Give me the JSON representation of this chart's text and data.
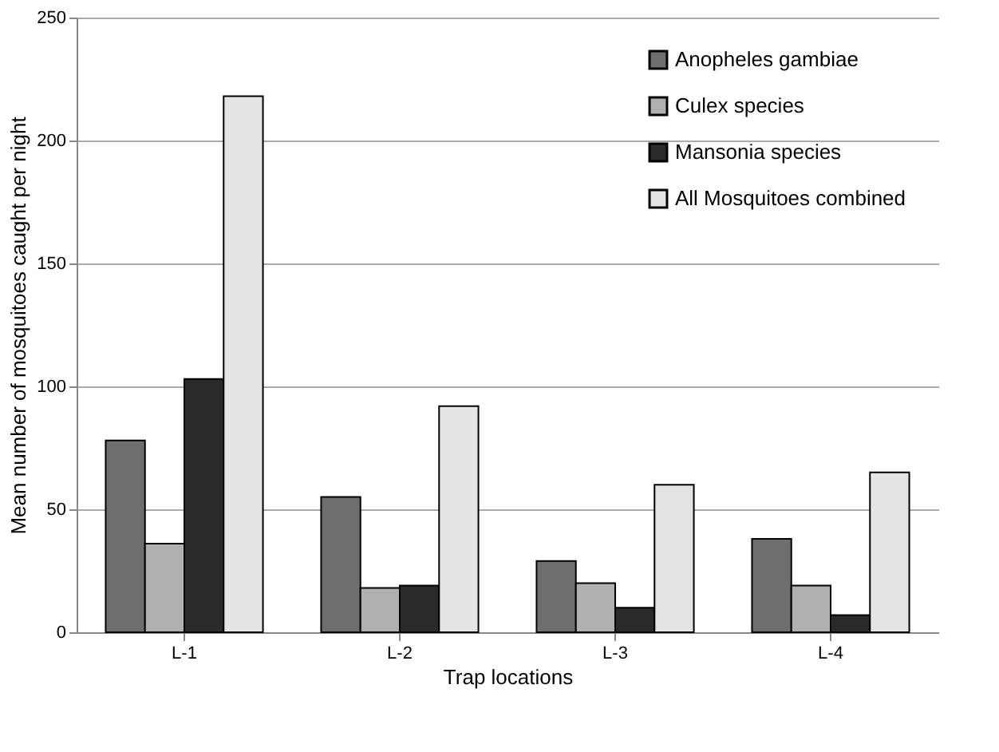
{
  "chart_data": {
    "type": "bar",
    "xlabel": "Trap locations",
    "ylabel": "Mean number of mosquitoes caught per night",
    "categories": [
      "L-1",
      "L-2",
      "L-3",
      "L-4"
    ],
    "series": [
      {
        "name": "Anopheles gambiae",
        "color": "#6e6e6e",
        "values": [
          78,
          55,
          29,
          38
        ]
      },
      {
        "name": "Culex species",
        "color": "#b0b0b0",
        "values": [
          36,
          18,
          20,
          19
        ]
      },
      {
        "name": "Mansonia species",
        "color": "#2a2a2a",
        "values": [
          103,
          19,
          10,
          7
        ]
      },
      {
        "name": "All Mosquitoes combined",
        "color": "#e4e4e4",
        "values": [
          218,
          92,
          60,
          65
        ]
      }
    ],
    "ylim": [
      0,
      250
    ],
    "yticks": [
      0,
      50,
      100,
      150,
      200,
      250
    ],
    "grid": "y",
    "legend": "top right"
  }
}
